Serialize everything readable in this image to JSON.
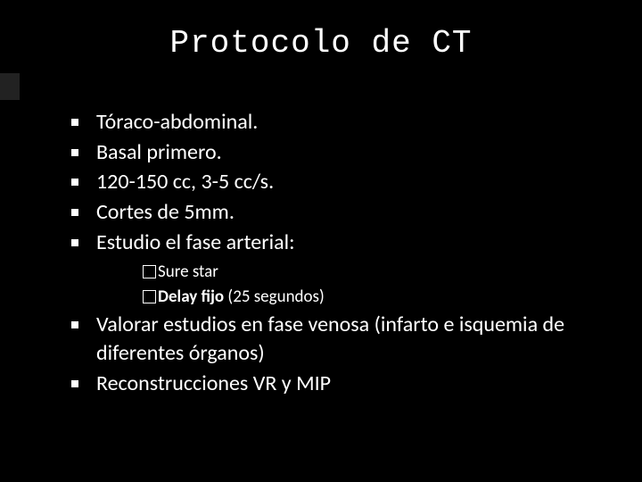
{
  "slide": {
    "title": "Protocolo de CT",
    "title_fontsize": 36,
    "title_font": "Consolas",
    "body_fontsize": 24,
    "sub_fontsize": 19,
    "background_color": "#000000",
    "text_color": "#ffffff",
    "accent_bar_color": "#222222",
    "bullets": [
      {
        "text": "Tóraco-abdominal."
      },
      {
        "text": "Basal primero."
      },
      {
        "text": "120-150 cc, 3-5 cc/s."
      },
      {
        "text": "Cortes de 5mm."
      },
      {
        "text": "Estudio el fase arterial:",
        "sub": [
          {
            "bold": "",
            "text": "Sure star"
          },
          {
            "bold": "Delay fijo",
            "text": " (25 segundos)"
          }
        ]
      },
      {
        "text": "Valorar estudios en fase venosa (infarto e isquemia de diferentes órganos)"
      },
      {
        "text": "Reconstrucciones VR y MIP"
      }
    ]
  }
}
